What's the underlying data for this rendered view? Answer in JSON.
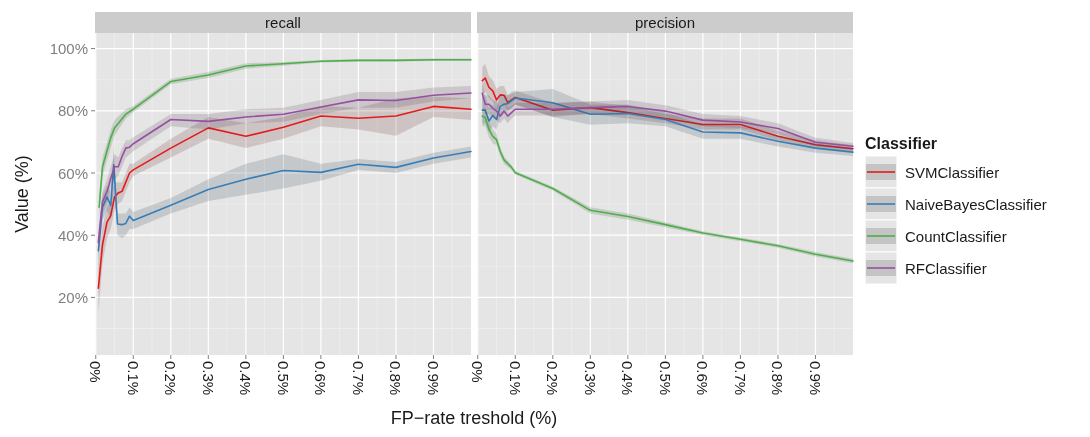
{
  "chart_data": [
    {
      "type": "line",
      "title": "recall",
      "xlabel": "FP−rate treshold (%)",
      "ylabel": "Value (%)",
      "xlim": [
        -0.002,
        1.0
      ],
      "ylim": [
        1.5,
        105
      ],
      "xticks": [
        {
          "value": 0,
          "label": "0%"
        },
        {
          "value": 0.1,
          "label": "0.1%"
        },
        {
          "value": 0.2,
          "label": "0.2%"
        },
        {
          "value": 0.3,
          "label": "0.3%"
        },
        {
          "value": 0.4,
          "label": "0.4%"
        },
        {
          "value": 0.5,
          "label": "0.5%"
        },
        {
          "value": 0.6,
          "label": "0.6%"
        },
        {
          "value": 0.7,
          "label": "0.7%"
        },
        {
          "value": 0.8,
          "label": "0.8%"
        },
        {
          "value": 0.9,
          "label": "0.9%"
        }
      ],
      "yticks": [
        {
          "value": 20,
          "label": "20%"
        },
        {
          "value": 40,
          "label": "40%"
        },
        {
          "value": 60,
          "label": "60%"
        },
        {
          "value": 80,
          "label": "80%"
        },
        {
          "value": 100,
          "label": "100%"
        }
      ],
      "grid": true,
      "legend": false,
      "series": [
        {
          "color": "#e41a1c",
          "x": [
            0.007,
            0.018,
            0.03,
            0.04,
            0.05,
            0.06,
            0.07,
            0.09,
            0.1,
            0.2,
            0.3,
            0.4,
            0.5,
            0.6,
            0.7,
            0.8,
            0.9,
            1.0
          ],
          "values": [
            23,
            37,
            44.2,
            46.3,
            52.3,
            53.6,
            54.1,
            60,
            61,
            68,
            74.5,
            71.8,
            74.7,
            78.3,
            77.6,
            78.3,
            81.4,
            80.5
          ],
          "lower": [
            15,
            31,
            39,
            42,
            48,
            50,
            51,
            57,
            59,
            65,
            71,
            68,
            71,
            75,
            74,
            72,
            78,
            77
          ],
          "upper": [
            30,
            43,
            49,
            51,
            57,
            57,
            57,
            63,
            63,
            71,
            78,
            76,
            78,
            81.5,
            81,
            84,
            84.5,
            84
          ]
        },
        {
          "color": "#377eb8",
          "x": [
            0.007,
            0.018,
            0.03,
            0.04,
            0.048,
            0.058,
            0.07,
            0.08,
            0.09,
            0.1,
            0.2,
            0.3,
            0.4,
            0.5,
            0.6,
            0.7,
            0.8,
            0.9,
            1.0
          ],
          "values": [
            35,
            49,
            52.3,
            49.6,
            62.6,
            43.6,
            43.4,
            43.8,
            46.1,
            44.7,
            49.6,
            54.7,
            58,
            60.8,
            60.2,
            62.8,
            61.8,
            64.8,
            66.9
          ],
          "lower": [
            30,
            45,
            48,
            45,
            55,
            40,
            39,
            40,
            42,
            42,
            47,
            51,
            53,
            55,
            57.5,
            61,
            60,
            63,
            65
          ],
          "upper": [
            40,
            53,
            56,
            54,
            68,
            47,
            47,
            47,
            49,
            47.5,
            52,
            58,
            63,
            66,
            63,
            64.5,
            63.5,
            66.5,
            68.5
          ]
        },
        {
          "color": "#4daf4a",
          "x": [
            0.009,
            0.018,
            0.04,
            0.05,
            0.08,
            0.1,
            0.2,
            0.3,
            0.4,
            0.5,
            0.6,
            0.7,
            0.8,
            0.9,
            1.0
          ],
          "values": [
            49,
            62,
            71.3,
            74.5,
            78.9,
            80.5,
            89.4,
            91.5,
            94.4,
            95.1,
            95.9,
            96.2,
            96.2,
            96.4,
            96.4
          ],
          "lower": [
            46,
            59,
            68,
            72,
            77.5,
            79.5,
            88.5,
            90.5,
            93.5,
            94.5,
            95.5,
            95.8,
            95.8,
            96,
            96
          ],
          "upper": [
            52,
            65,
            74,
            77,
            80.5,
            81.5,
            90.3,
            92.5,
            95.3,
            95.7,
            96.3,
            96.6,
            96.6,
            96.8,
            96.8
          ]
        },
        {
          "color": "#984ea3",
          "x": [
            0.007,
            0.018,
            0.03,
            0.04,
            0.05,
            0.06,
            0.07,
            0.08,
            0.09,
            0.1,
            0.2,
            0.3,
            0.4,
            0.5,
            0.6,
            0.7,
            0.8,
            0.9,
            1.0
          ],
          "values": [
            37.7,
            50.7,
            54,
            58.3,
            62,
            62,
            65.3,
            68,
            68.3,
            69.4,
            77.2,
            76.6,
            78,
            78.9,
            81.2,
            83.5,
            83.3,
            85,
            85.7
          ],
          "lower": [
            33,
            47,
            50,
            55,
            58,
            59,
            62,
            65,
            66,
            67,
            75,
            74,
            76,
            76.5,
            79,
            81,
            81,
            83,
            84
          ],
          "upper": [
            42,
            54,
            58,
            62,
            66,
            65,
            68,
            70.5,
            70.5,
            71.5,
            79,
            79,
            80.5,
            81,
            83.5,
            86,
            86,
            87.5,
            88
          ]
        }
      ]
    },
    {
      "type": "line",
      "title": "precision",
      "legend_title": "Classifier",
      "xlim": [
        -0.002,
        1.0
      ],
      "ylim": [
        1.5,
        105
      ],
      "xticks": [
        {
          "value": 0,
          "label": "0%"
        },
        {
          "value": 0.1,
          "label": "0.1%"
        },
        {
          "value": 0.2,
          "label": "0.2%"
        },
        {
          "value": 0.3,
          "label": "0.3%"
        },
        {
          "value": 0.4,
          "label": "0.4%"
        },
        {
          "value": 0.5,
          "label": "0.5%"
        },
        {
          "value": 0.6,
          "label": "0.6%"
        },
        {
          "value": 0.7,
          "label": "0.7%"
        },
        {
          "value": 0.8,
          "label": "0.8%"
        },
        {
          "value": 0.9,
          "label": "0.9%"
        }
      ],
      "yticks": [
        {
          "value": 20,
          "label": null
        },
        {
          "value": 40,
          "label": null
        },
        {
          "value": 60,
          "label": null
        },
        {
          "value": 80,
          "label": null
        },
        {
          "value": 100,
          "label": null
        }
      ],
      "tick_labels": "x",
      "grid": true,
      "legend": "right",
      "series": [
        {
          "name": "SVMClassifier",
          "color": "#e41a1c",
          "x": [
            0.012,
            0.02,
            0.03,
            0.04,
            0.05,
            0.06,
            0.07,
            0.08,
            0.09,
            0.1,
            0.2,
            0.3,
            0.4,
            0.5,
            0.6,
            0.7,
            0.8,
            0.9,
            1.0
          ],
          "values": [
            89.7,
            90.5,
            87.5,
            86.4,
            83.5,
            85.1,
            85,
            82.6,
            83.5,
            84.3,
            80.2,
            81,
            79.4,
            77.5,
            75.6,
            75.6,
            71.8,
            69.1,
            67.8
          ],
          "lower": [
            85,
            86,
            84,
            83,
            80,
            82,
            82,
            80,
            81,
            82,
            78,
            79,
            77.5,
            76,
            74,
            74,
            70.5,
            68,
            66.8
          ],
          "upper": [
            94,
            95,
            91,
            90,
            87,
            88,
            88,
            85,
            86,
            86.5,
            82.5,
            83,
            81.5,
            79,
            77.5,
            77.5,
            73.5,
            70.5,
            69
          ]
        },
        {
          "name": "NaiveBayesClassifier",
          "color": "#377eb8",
          "x": [
            0.012,
            0.02,
            0.03,
            0.04,
            0.05,
            0.06,
            0.07,
            0.08,
            0.09,
            0.1,
            0.2,
            0.3,
            0.4,
            0.5,
            0.6,
            0.7,
            0.8,
            0.9,
            1.0
          ],
          "values": [
            80.2,
            80.2,
            76.7,
            78.5,
            77.2,
            81.5,
            82.1,
            82.3,
            83.2,
            84.1,
            82.6,
            78.9,
            79.1,
            77.2,
            73.2,
            72.9,
            70.2,
            68,
            66.7
          ],
          "lower": [
            76,
            76,
            73,
            75,
            74,
            78,
            79,
            80,
            81,
            82,
            78,
            75.5,
            76,
            75,
            71,
            71,
            68.5,
            66.5,
            65.5
          ],
          "upper": [
            85,
            85,
            81,
            82,
            81,
            85,
            85,
            85,
            85.5,
            86,
            87,
            82,
            82,
            79.5,
            75.5,
            75,
            72,
            69.5,
            68
          ]
        },
        {
          "name": "CountClassifier",
          "color": "#4daf4a",
          "x": [
            0.012,
            0.02,
            0.03,
            0.04,
            0.05,
            0.06,
            0.07,
            0.09,
            0.1,
            0.2,
            0.3,
            0.4,
            0.5,
            0.6,
            0.7,
            0.8,
            0.9,
            1.0
          ],
          "values": [
            78.3,
            77.8,
            74,
            71.8,
            70.7,
            66.9,
            64.2,
            61.8,
            60.1,
            55,
            48,
            46,
            43.4,
            40.7,
            38.7,
            36.6,
            33.9,
            31.7
          ],
          "lower": [
            75,
            75,
            71.5,
            69.5,
            69,
            65.5,
            63,
            61,
            59.5,
            54.4,
            47,
            45,
            42.6,
            40.1,
            38.1,
            36,
            33.2,
            31
          ],
          "upper": [
            81.5,
            80.5,
            76.5,
            74,
            72.5,
            68.3,
            65.4,
            62.6,
            60.7,
            55.6,
            49,
            47,
            44.2,
            41.3,
            39.3,
            37.2,
            34.6,
            32.4
          ]
        },
        {
          "name": "RFClassifier",
          "color": "#984ea3",
          "x": [
            0.012,
            0.02,
            0.03,
            0.04,
            0.05,
            0.06,
            0.07,
            0.08,
            0.09,
            0.1,
            0.2,
            0.3,
            0.4,
            0.5,
            0.6,
            0.7,
            0.8,
            0.9,
            1.0
          ],
          "values": [
            85.6,
            82.1,
            82.1,
            80.8,
            79.9,
            78.3,
            79.9,
            78.3,
            79.4,
            80.5,
            80.5,
            81,
            81.4,
            79.9,
            77,
            76.4,
            74.3,
            69.9,
            68.6
          ],
          "lower": [
            82,
            79,
            79,
            78,
            77,
            76,
            77.5,
            76,
            77.5,
            78.5,
            78.5,
            79,
            79.5,
            78,
            75,
            74.5,
            72.5,
            68.5,
            67.5
          ],
          "upper": [
            89,
            85,
            85,
            83.5,
            83,
            81,
            82.5,
            81,
            81.5,
            82.5,
            82.5,
            83,
            83.5,
            81.8,
            79,
            78.3,
            76,
            71.3,
            69.7
          ]
        }
      ]
    }
  ]
}
